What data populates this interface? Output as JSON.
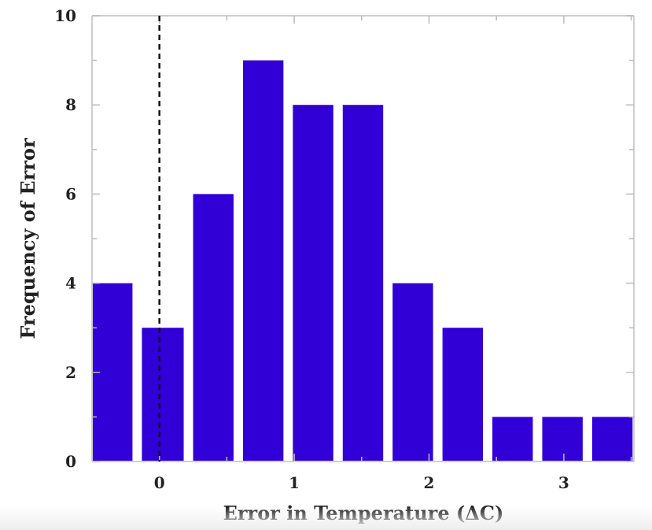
{
  "chart_data": {
    "type": "bar",
    "bins": [
      {
        "start": -0.5,
        "end": -0.2,
        "value": 4
      },
      {
        "start": -0.13,
        "end": 0.18,
        "value": 3
      },
      {
        "start": 0.25,
        "end": 0.55,
        "value": 6
      },
      {
        "start": 0.62,
        "end": 0.92,
        "value": 9
      },
      {
        "start": 0.99,
        "end": 1.29,
        "value": 8
      },
      {
        "start": 1.36,
        "end": 1.66,
        "value": 8
      },
      {
        "start": 1.73,
        "end": 2.03,
        "value": 4
      },
      {
        "start": 2.1,
        "end": 2.4,
        "value": 3
      },
      {
        "start": 2.47,
        "end": 2.77,
        "value": 1
      },
      {
        "start": 2.84,
        "end": 3.14,
        "value": 1
      },
      {
        "start": 3.21,
        "end": 3.51,
        "value": 1
      }
    ],
    "title": "",
    "xlabel": "Error in Temperature (ΔC)",
    "ylabel": "Frequency of Error",
    "xlim": [
      -0.5,
      3.52
    ],
    "ylim": [
      0,
      10
    ],
    "xticks": [
      0,
      1,
      2,
      3
    ],
    "yticks": [
      0,
      2,
      4,
      6,
      8,
      10
    ],
    "reference_line": {
      "x": 0,
      "style": "dashed",
      "color": "#111111"
    },
    "bar_color": "#3100d6",
    "grid": false,
    "legend": "none"
  }
}
